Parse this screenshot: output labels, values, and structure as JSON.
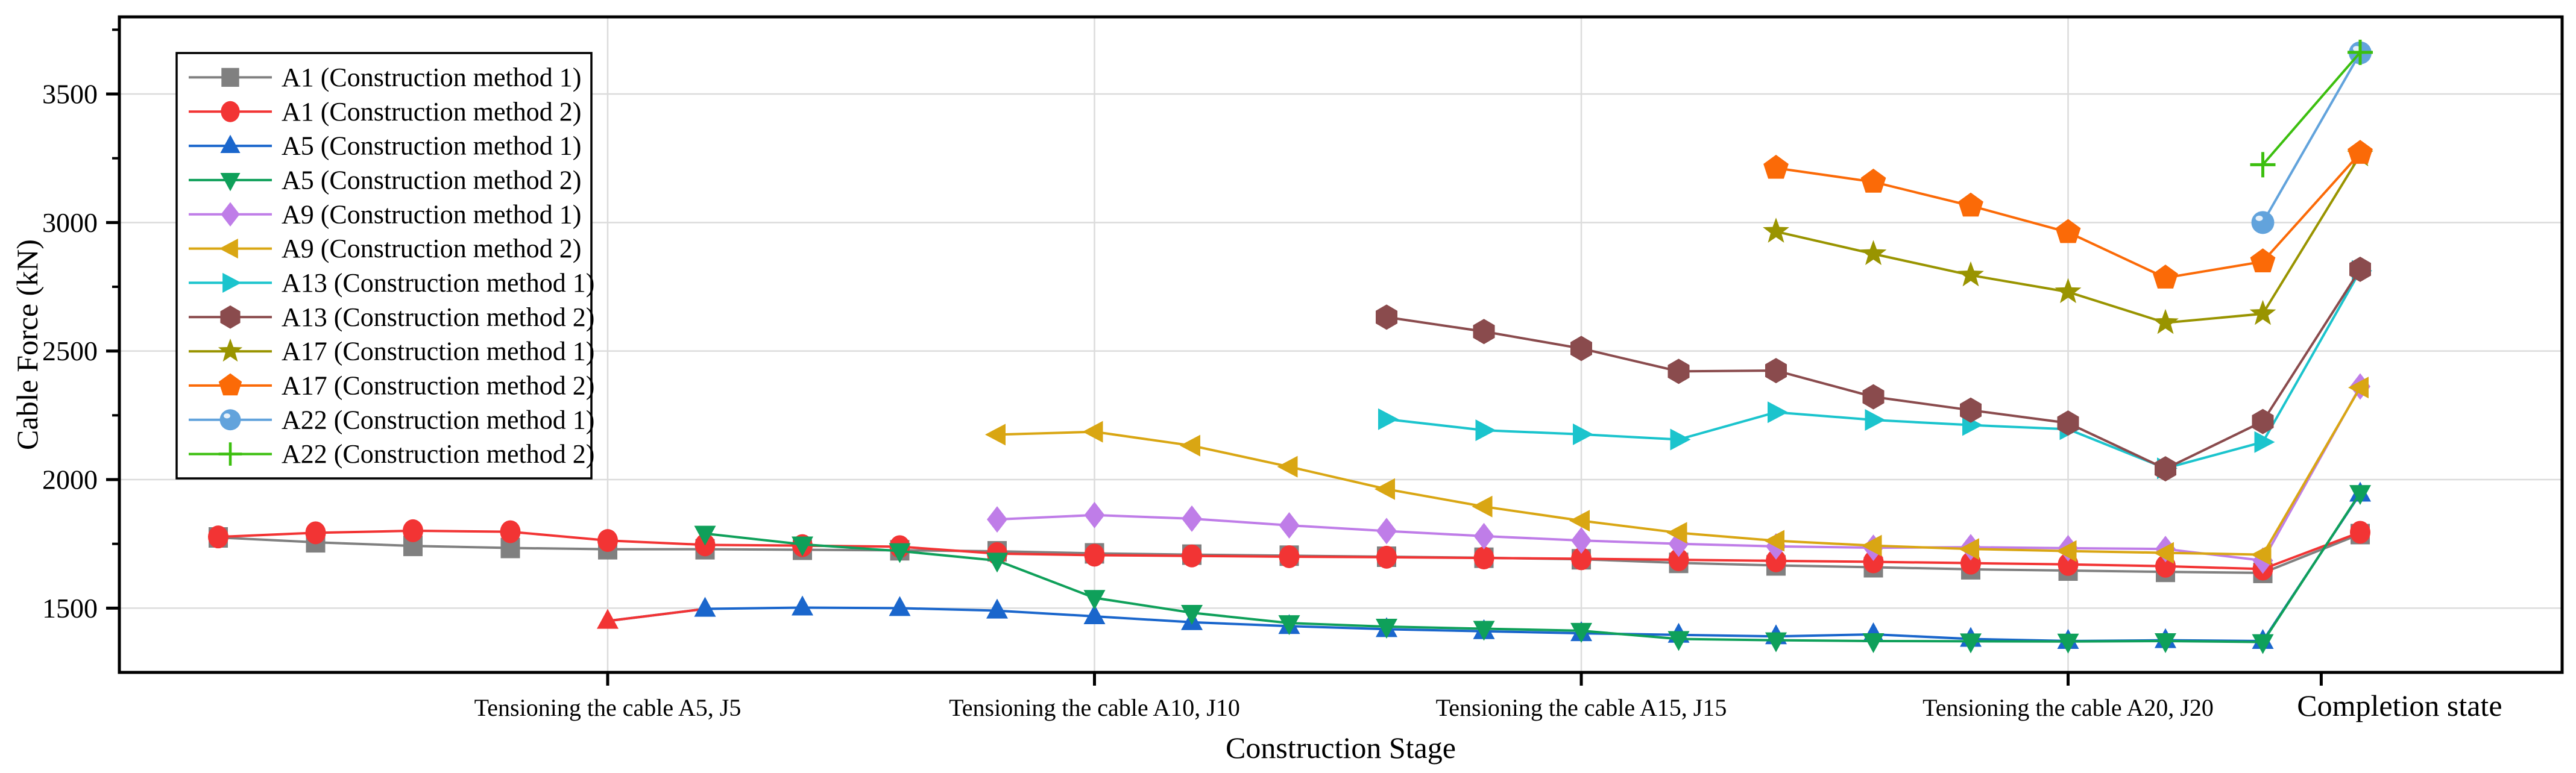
{
  "figure": {
    "background": "#ffffff",
    "plot_border_color": "#000000",
    "gridline_color": "#DCDCDC"
  },
  "chart_data": {
    "type": "line",
    "title": "",
    "xlabel": "Construction Stage",
    "ylabel": "Cable Force (kN)",
    "ylim": [
      1250,
      3800
    ],
    "yticks": [
      1500,
      2000,
      2500,
      3000,
      3500
    ],
    "y_minor_ticks": [
      1750,
      2250,
      2750,
      3250,
      3750
    ],
    "grid": true,
    "legend_position": "upper-left",
    "n_stages": 23,
    "x_ticks": [
      {
        "label": "Tensioning the cable A5, J5",
        "stage": 4,
        "gridline": true,
        "large": false,
        "label_dx": 0
      },
      {
        "label": "Tensioning the cable A10, J10",
        "stage": 9,
        "gridline": true,
        "large": false,
        "label_dx": 0
      },
      {
        "label": "Tensioning the cable A15, J15",
        "stage": 14,
        "gridline": true,
        "large": false,
        "label_dx": 0
      },
      {
        "label": "Tensioning the cable A20, J20",
        "stage": 19,
        "gridline": true,
        "large": false,
        "label_dx": 0
      },
      {
        "label": "Completion state",
        "stage": 21.6,
        "gridline": false,
        "large": true,
        "label_dx": 130
      }
    ],
    "series": [
      {
        "id": "a1-method-1",
        "label": "A1 (Construction method 1)",
        "color": "#808080",
        "marker": "square",
        "start_stage": 0,
        "values": [
          1775,
          1756,
          1742,
          1734,
          1729,
          1729,
          1727,
          1725,
          1721,
          1713,
          1708,
          1704,
          1700,
          1696,
          1690,
          1676,
          1666,
          1659,
          1651,
          1646,
          1641,
          1637,
          1788
        ]
      },
      {
        "id": "a1-method-2",
        "label": "A1 (Construction method 2)",
        "color": "#F23434",
        "marker": "circle",
        "start_stage": 0,
        "values": [
          1777,
          1793,
          1801,
          1797,
          1763,
          1746,
          1743,
          1739,
          1712,
          1706,
          1703,
          1700,
          1698,
          1695,
          1692,
          1688,
          1684,
          1680,
          1675,
          1670,
          1663,
          1652,
          1795
        ]
      },
      {
        "id": "a5-method-1",
        "label": "A5 (Construction method 1)",
        "color": "#1A66CC",
        "marker": "triangle-up",
        "start_stage": 4,
        "first_point_color": "#F23434",
        "values": [
          1450,
          1497,
          1502,
          1500,
          1490,
          1468,
          1445,
          1430,
          1418,
          1410,
          1402,
          1396,
          1390,
          1398,
          1380,
          1372,
          1375,
          1372,
          1945
        ]
      },
      {
        "id": "a5-method-2",
        "label": "A5 (Construction method 2)",
        "color": "#0FA05A",
        "marker": "triangle-down",
        "start_stage": 5,
        "values": [
          1790,
          1748,
          1722,
          1685,
          1540,
          1482,
          1442,
          1428,
          1420,
          1412,
          1380,
          1375,
          1372,
          1371,
          1370,
          1372,
          1368,
          1948
        ]
      },
      {
        "id": "a9-method-1",
        "label": "A9 (Construction method 1)",
        "color": "#BF7DE8",
        "marker": "diamond",
        "start_stage": 8,
        "values": [
          1845,
          1862,
          1848,
          1822,
          1800,
          1780,
          1763,
          1750,
          1740,
          1735,
          1737,
          1733,
          1730,
          1685,
          2362
        ]
      },
      {
        "id": "a9-method-2",
        "label": "A9 (Construction method 2)",
        "color": "#D9A613",
        "marker": "triangle-left",
        "start_stage": 8,
        "values": [
          2175,
          2186,
          2132,
          2050,
          1963,
          1895,
          1840,
          1793,
          1762,
          1743,
          1730,
          1722,
          1715,
          1708,
          2358
        ]
      },
      {
        "id": "a13-method-1",
        "label": "A13 (Construction method 1)",
        "color": "#1BC4CD",
        "marker": "triangle-right",
        "start_stage": 12,
        "values": [
          2235,
          2192,
          2176,
          2156,
          2262,
          2232,
          2212,
          2196,
          2044,
          2146,
          2812
        ]
      },
      {
        "id": "a13-method-2",
        "label": "A13 (Construction method 2)",
        "color": "#8A4B4D",
        "marker": "hexagon",
        "start_stage": 12,
        "values": [
          2632,
          2576,
          2510,
          2421,
          2424,
          2322,
          2270,
          2220,
          2042,
          2226,
          2818
        ]
      },
      {
        "id": "a17-method-1",
        "label": "A17 (Construction method 1)",
        "color": "#999400",
        "marker": "star",
        "start_stage": 16,
        "values": [
          2965,
          2878,
          2795,
          2730,
          2610,
          2645,
          3262
        ]
      },
      {
        "id": "a17-method-2",
        "label": "A17 (Construction method 2)",
        "color": "#FB6A07",
        "marker": "pentagon",
        "start_stage": 16,
        "values": [
          3212,
          3158,
          3065,
          2962,
          2785,
          2848,
          3270
        ]
      },
      {
        "id": "a22-method-1",
        "label": "A22 (Construction method 1)",
        "color": "#62A3DC",
        "marker": "sphere",
        "start_stage": 21,
        "values": [
          3000,
          3660
        ]
      },
      {
        "id": "a22-method-2",
        "label": "A22 (Construction method 2)",
        "color": "#3CBF0F",
        "marker": "plus",
        "start_stage": 21,
        "values": [
          3225,
          3662
        ]
      }
    ]
  }
}
